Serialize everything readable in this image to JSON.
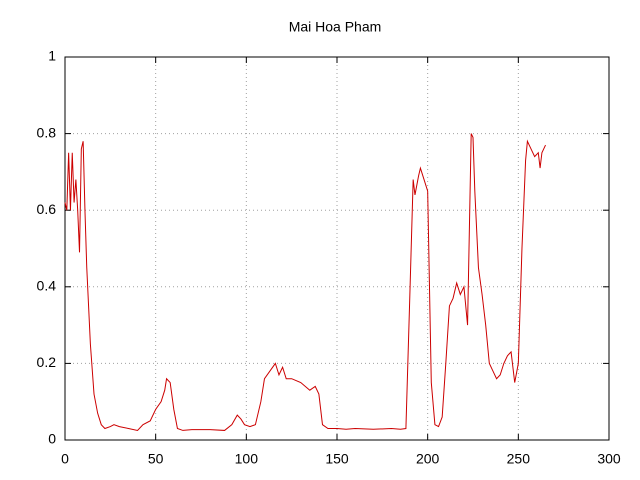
{
  "chart_data": {
    "type": "line",
    "title": "Mai Hoa Pham",
    "x": [
      0,
      1,
      2,
      3,
      4,
      5,
      6,
      7,
      8,
      9,
      10,
      11,
      12,
      14,
      16,
      18,
      20,
      22,
      25,
      27,
      30,
      35,
      40,
      43,
      47,
      50,
      53,
      55,
      56,
      58,
      60,
      62,
      65,
      70,
      80,
      88,
      92,
      95,
      97,
      99,
      102,
      105,
      108,
      110,
      113,
      116,
      118,
      120,
      122,
      125,
      130,
      135,
      138,
      140,
      142,
      145,
      150,
      155,
      160,
      170,
      180,
      185,
      188,
      190,
      192,
      193,
      195,
      196,
      198,
      200,
      202,
      204,
      206,
      208,
      210,
      212,
      214,
      216,
      218,
      220,
      222,
      224,
      225,
      226,
      228,
      230,
      232,
      234,
      236,
      238,
      240,
      242,
      244,
      246,
      248,
      250,
      252,
      254,
      255,
      257,
      259,
      261,
      262,
      263,
      265
    ],
    "values": [
      0.62,
      0.6,
      0.75,
      0.6,
      0.75,
      0.62,
      0.68,
      0.6,
      0.49,
      0.76,
      0.78,
      0.6,
      0.45,
      0.25,
      0.12,
      0.07,
      0.04,
      0.03,
      0.035,
      0.04,
      0.035,
      0.03,
      0.025,
      0.04,
      0.05,
      0.08,
      0.1,
      0.13,
      0.16,
      0.15,
      0.08,
      0.03,
      0.025,
      0.027,
      0.027,
      0.025,
      0.04,
      0.065,
      0.055,
      0.04,
      0.035,
      0.04,
      0.1,
      0.16,
      0.18,
      0.2,
      0.17,
      0.19,
      0.16,
      0.16,
      0.15,
      0.13,
      0.14,
      0.12,
      0.04,
      0.03,
      0.03,
      0.028,
      0.03,
      0.028,
      0.03,
      0.028,
      0.03,
      0.35,
      0.68,
      0.64,
      0.69,
      0.71,
      0.68,
      0.65,
      0.15,
      0.04,
      0.035,
      0.06,
      0.2,
      0.35,
      0.37,
      0.41,
      0.38,
      0.4,
      0.3,
      0.8,
      0.79,
      0.65,
      0.45,
      0.38,
      0.3,
      0.2,
      0.18,
      0.16,
      0.17,
      0.2,
      0.22,
      0.23,
      0.15,
      0.2,
      0.5,
      0.73,
      0.78,
      0.76,
      0.74,
      0.75,
      0.71,
      0.75,
      0.77
    ],
    "color": "#cc0000",
    "xlim": [
      0,
      300
    ],
    "xticks": [
      0,
      50,
      100,
      150,
      200,
      250,
      300
    ],
    "ylim": [
      0,
      1
    ],
    "yticks": [
      0,
      0.2,
      0.4,
      0.6,
      0.8,
      1
    ],
    "grid": true
  }
}
